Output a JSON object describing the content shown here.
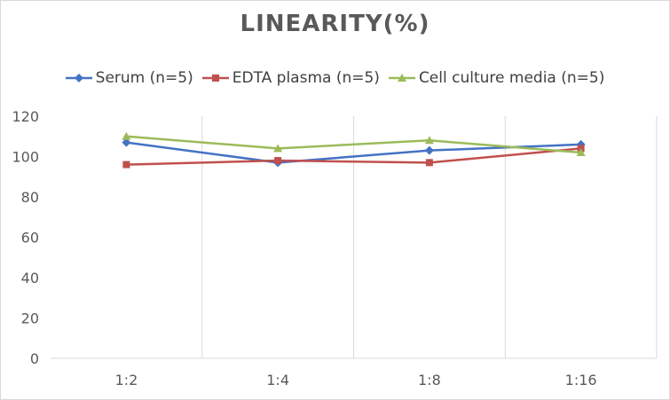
{
  "chart_data": {
    "type": "line",
    "title": "LINEARITY(%)",
    "xlabel": "",
    "ylabel": "",
    "categories": [
      "1:2",
      "1:4",
      "1:8",
      "1:16"
    ],
    "ylim": [
      0,
      120
    ],
    "yticks": [
      0,
      20,
      40,
      60,
      80,
      100,
      120
    ],
    "grid": "vertical",
    "legend": "top",
    "series": [
      {
        "name": "Serum (n=5)",
        "values": [
          107,
          97,
          103,
          106
        ],
        "color": "#4472c4",
        "marker": "diamond"
      },
      {
        "name": "EDTA plasma (n=5)",
        "values": [
          96,
          98,
          97,
          104
        ],
        "color": "#c0504d",
        "marker": "square"
      },
      {
        "name": "Cell culture media (n=5)",
        "values": [
          110,
          104,
          108,
          102
        ],
        "color": "#9bbb59",
        "marker": "triangle"
      }
    ]
  }
}
